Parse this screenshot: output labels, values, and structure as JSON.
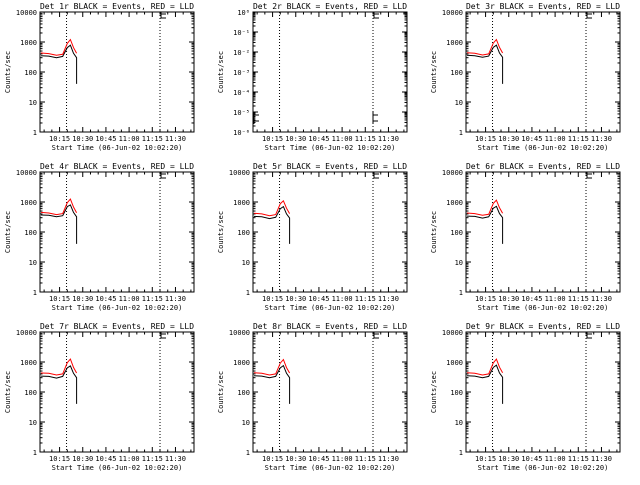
{
  "colors": {
    "events": "#000000",
    "lld": "#ff0000",
    "axis": "#000000",
    "background": "#ffffff"
  },
  "common": {
    "xlabel": "Start Time (06-Jun-02 10:02:20)",
    "ylabel": "Counts/sec",
    "xticks": [
      "10:15",
      "10:30",
      "10:45",
      "11:00",
      "11:15",
      "11:30"
    ],
    "xtick_minutes": [
      15,
      30,
      45,
      60,
      75,
      90
    ],
    "xlim_minutes": [
      2.33,
      102
    ],
    "ylim": [
      1,
      10000
    ],
    "yscale": "log",
    "yticks": [
      "1",
      "10",
      "100",
      "1000",
      "10000"
    ],
    "dotted_vlines_minutes": [
      19.5,
      80
    ]
  },
  "chart_data": [
    {
      "type": "line",
      "title": "Det 1r BLACK = Events, RED = LLD",
      "x": [
        3,
        8,
        13,
        17,
        20,
        22,
        24,
        26
      ],
      "series": [
        {
          "name": "Events",
          "values": [
            350,
            340,
            300,
            330,
            650,
            780,
            420,
            300
          ]
        },
        {
          "name": "LLD",
          "values": [
            430,
            410,
            360,
            390,
            900,
            1200,
            650,
            420
          ]
        }
      ],
      "drop": {
        "x": 26,
        "to": 40
      }
    },
    {
      "type": "line",
      "title": "Det 2r BLACK = Events, RED = LLD",
      "yscale": "log",
      "ylim": [
        1e-06,
        1
      ],
      "yticks": [
        "10⁻⁶",
        "10⁻⁵",
        "10⁻⁴",
        "10⁻³",
        "10⁻²",
        "10⁻¹",
        "10⁰"
      ],
      "x": [],
      "series": []
    },
    {
      "type": "line",
      "title": "Det 3r BLACK = Events, RED = LLD",
      "x": [
        3,
        8,
        13,
        17,
        20,
        22,
        24,
        26
      ],
      "series": [
        {
          "name": "Events",
          "values": [
            360,
            350,
            310,
            340,
            660,
            780,
            430,
            310
          ]
        },
        {
          "name": "LLD",
          "values": [
            440,
            420,
            370,
            400,
            920,
            1200,
            660,
            430
          ]
        }
      ],
      "drop": {
        "x": 26,
        "to": 40
      }
    },
    {
      "type": "line",
      "title": "Det 4r BLACK = Events, RED = LLD",
      "x": [
        3,
        8,
        13,
        17,
        20,
        22,
        24,
        26
      ],
      "series": [
        {
          "name": "Events",
          "values": [
            370,
            360,
            320,
            350,
            700,
            800,
            450,
            320
          ]
        },
        {
          "name": "LLD",
          "values": [
            450,
            430,
            380,
            410,
            950,
            1250,
            680,
            440
          ]
        }
      ],
      "drop": {
        "x": 26,
        "to": 40
      }
    },
    {
      "type": "line",
      "title": "Det 5r BLACK = Events, RED = LLD",
      "x": [
        3,
        8,
        13,
        17,
        20,
        22,
        24,
        26
      ],
      "series": [
        {
          "name": "Events",
          "values": [
            330,
            320,
            280,
            310,
            600,
            700,
            400,
            290
          ]
        },
        {
          "name": "LLD",
          "values": [
            420,
            400,
            350,
            380,
            880,
            1100,
            620,
            410
          ]
        }
      ],
      "drop": {
        "x": 26,
        "to": 40
      }
    },
    {
      "type": "line",
      "title": "Det 6r BLACK = Events, RED = LLD",
      "x": [
        3,
        8,
        13,
        17,
        20,
        22,
        24,
        26
      ],
      "series": [
        {
          "name": "Events",
          "values": [
            340,
            330,
            290,
            320,
            620,
            720,
            410,
            300
          ]
        },
        {
          "name": "LLD",
          "values": [
            430,
            410,
            360,
            390,
            900,
            1150,
            640,
            420
          ]
        }
      ],
      "drop": {
        "x": 26,
        "to": 40
      }
    },
    {
      "type": "line",
      "title": "Det 7r BLACK = Events, RED = LLD",
      "x": [
        3,
        8,
        13,
        17,
        20,
        22,
        24,
        26
      ],
      "series": [
        {
          "name": "Events",
          "values": [
            340,
            330,
            290,
            330,
            640,
            740,
            420,
            300
          ]
        },
        {
          "name": "LLD",
          "values": [
            430,
            420,
            370,
            400,
            950,
            1250,
            660,
            430
          ]
        }
      ],
      "drop": {
        "x": 26,
        "to": 40
      }
    },
    {
      "type": "line",
      "title": "Det 8r BLACK = Events, RED = LLD",
      "x": [
        3,
        8,
        13,
        17,
        20,
        22,
        24,
        26
      ],
      "series": [
        {
          "name": "Events",
          "values": [
            350,
            340,
            300,
            330,
            640,
            760,
            420,
            300
          ]
        },
        {
          "name": "LLD",
          "values": [
            440,
            420,
            370,
            400,
            920,
            1200,
            650,
            430
          ]
        }
      ],
      "drop": {
        "x": 26,
        "to": 40
      }
    },
    {
      "type": "line",
      "title": "Det 9r BLACK = Events, RED = LLD",
      "x": [
        3,
        8,
        13,
        17,
        20,
        22,
        24,
        26
      ],
      "series": [
        {
          "name": "Events",
          "values": [
            350,
            340,
            300,
            330,
            660,
            780,
            430,
            310
          ]
        },
        {
          "name": "LLD",
          "values": [
            440,
            420,
            370,
            400,
            930,
            1250,
            670,
            440
          ]
        }
      ],
      "drop": {
        "x": 26,
        "to": 40
      }
    }
  ]
}
